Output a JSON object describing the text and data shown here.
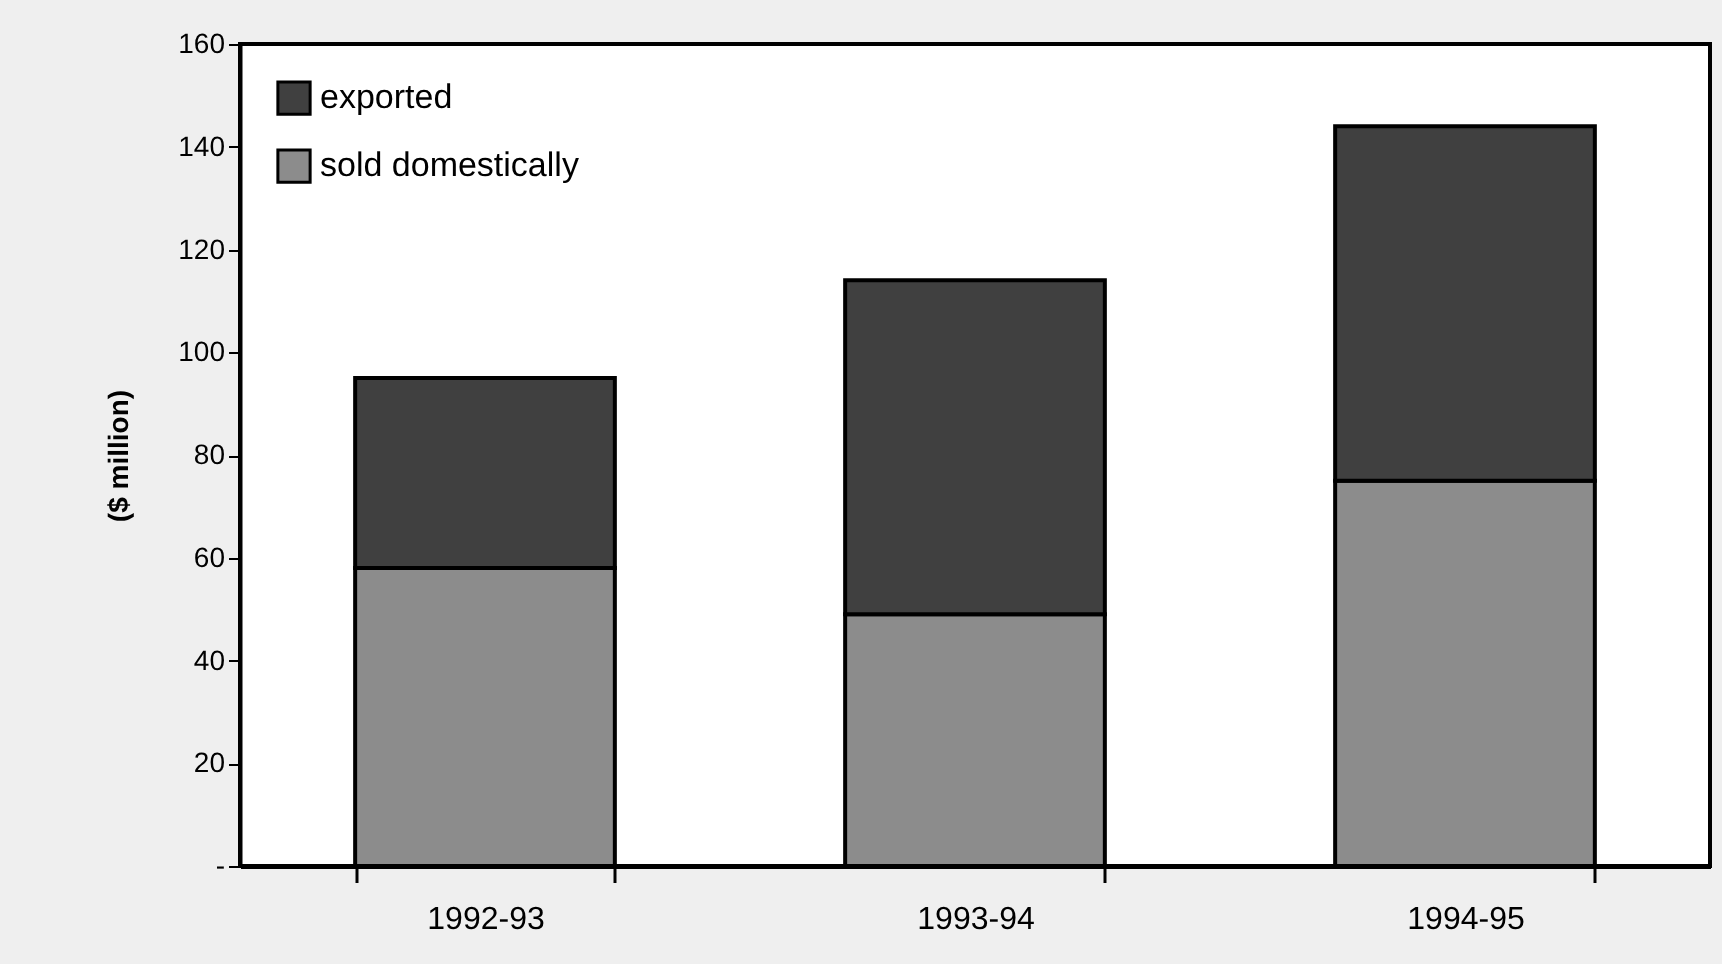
{
  "chart_data": {
    "type": "bar",
    "stacked": true,
    "ylabel": "($ million)",
    "categories": [
      "1992-93",
      "1993-94",
      "1994-95"
    ],
    "series": [
      {
        "name": "sold domestically",
        "color": "#8c8c8c",
        "values": [
          58,
          49,
          75
        ]
      },
      {
        "name": "exported",
        "color": "#404040",
        "values": [
          37,
          65,
          69
        ]
      }
    ],
    "ylim": [
      0,
      160
    ],
    "yticks": [
      {
        "value": 0,
        "label": "-"
      },
      20,
      40,
      60,
      80,
      100,
      120,
      140,
      160
    ],
    "grid": false,
    "legend": "top left"
  }
}
